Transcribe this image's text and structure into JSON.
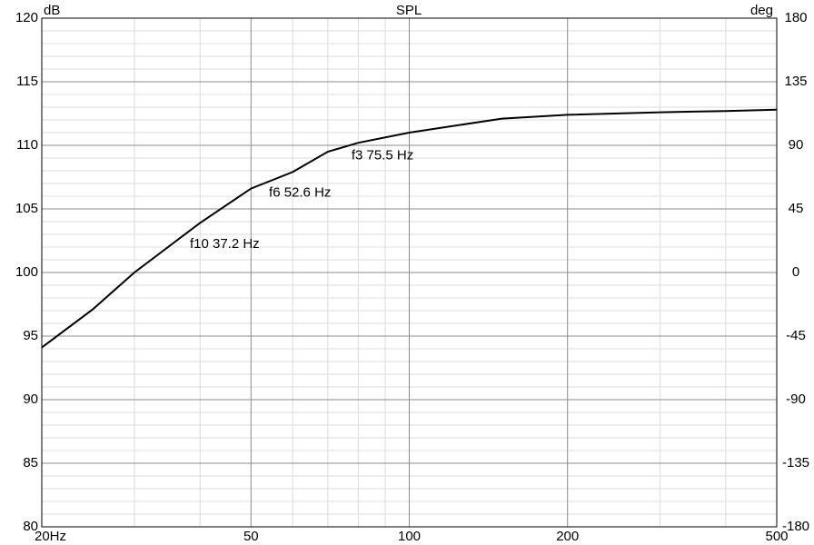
{
  "chart_data": {
    "type": "line",
    "title": "SPL",
    "y_label": "dB",
    "y2_label": "deg",
    "x": [
      20,
      25,
      30,
      40,
      50,
      60,
      70,
      80,
      100,
      150,
      200,
      300,
      400,
      500
    ],
    "series": [
      {
        "name": "SPL",
        "color": "#000000",
        "values": [
          94.1,
          97.1,
          100.0,
          103.9,
          106.6,
          107.9,
          109.5,
          110.2,
          111.0,
          112.1,
          112.4,
          112.6,
          112.7,
          112.8
        ]
      }
    ],
    "xlim": [
      20,
      500
    ],
    "x_log": true,
    "xticks": [
      {
        "value": 20,
        "label": "20Hz"
      },
      50,
      100,
      200,
      500
    ],
    "x_minor_ticks": [
      30,
      40,
      60,
      70,
      80,
      90,
      300,
      400
    ],
    "ylim": [
      80,
      120
    ],
    "yticks": [
      80,
      85,
      90,
      95,
      100,
      105,
      110,
      115,
      120
    ],
    "y_minor_step": 1,
    "y2lim": [
      -180,
      180
    ],
    "y2ticks": [
      -180,
      -135,
      -90,
      -45,
      0,
      45,
      90,
      135,
      180
    ],
    "grid": true,
    "annotations": [
      {
        "text": "f10 37.2 Hz",
        "x": 37.2
      },
      {
        "text": "f6 52.6 Hz",
        "x": 52.6
      },
      {
        "text": "f3 75.5 Hz",
        "x": 75.5
      }
    ]
  }
}
